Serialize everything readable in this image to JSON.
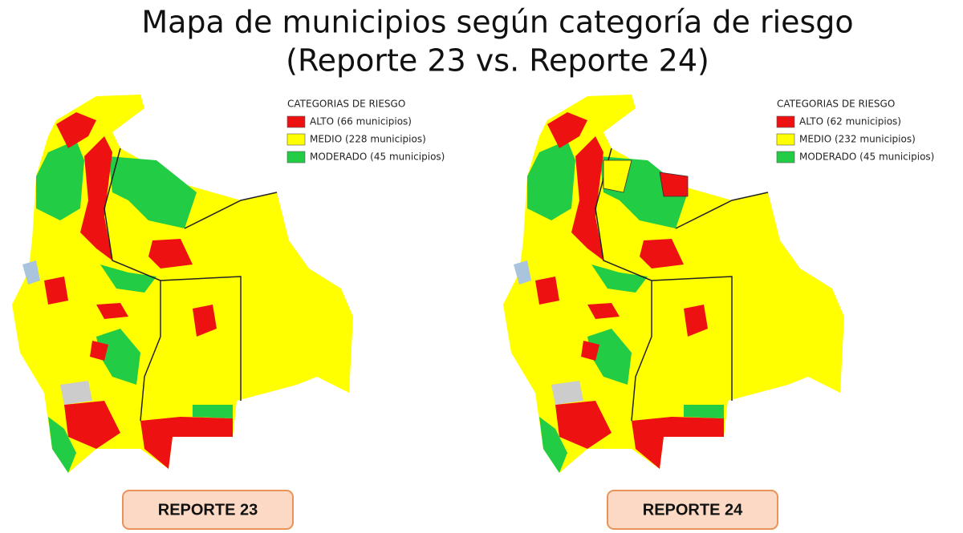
{
  "title": [
    "Mapa de municipios según categoría de riesgo",
    "(Reporte 23 vs. Reporte 24)"
  ],
  "maps": [
    {
      "legend_title": "CATEGORIAS DE RIESGO",
      "legend": [
        {
          "label": "ALTO (66 municipios)",
          "color": "#ee1111"
        },
        {
          "label": "MEDIO (228 municipios)",
          "color": "#ffff00"
        },
        {
          "label": "MODERADO (45 municipios)",
          "color": "#22cc44"
        }
      ],
      "label": "REPORTE 23"
    },
    {
      "legend_title": "CATEGORIAS DE RIESGO",
      "legend": [
        {
          "label": "ALTO (62 municipios)",
          "color": "#ee1111"
        },
        {
          "label": "MEDIO (232 municipios)",
          "color": "#ffff00"
        },
        {
          "label": "MODERADO (45 municipios)",
          "color": "#22cc44"
        }
      ],
      "label": "REPORTE 24"
    }
  ]
}
